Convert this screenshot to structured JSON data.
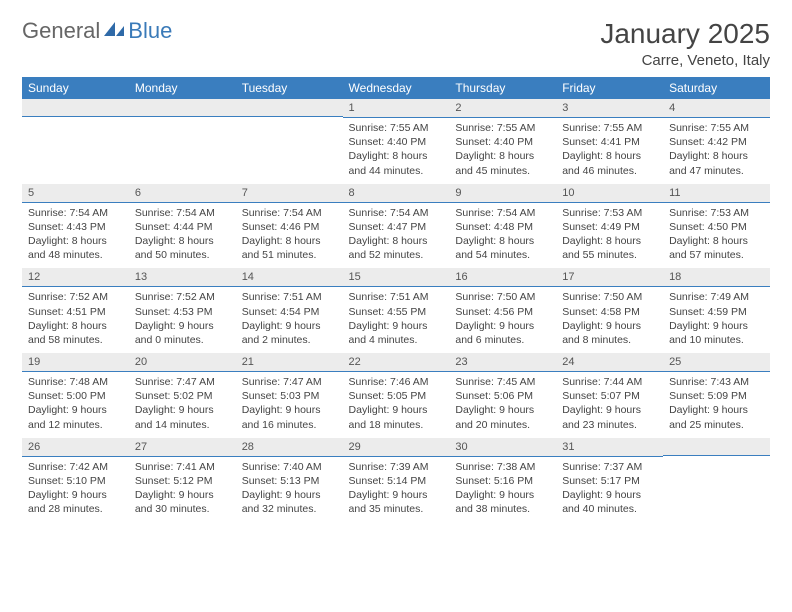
{
  "brand": {
    "word1": "General",
    "word2": "Blue"
  },
  "title": "January 2025",
  "location": "Carre, Veneto, Italy",
  "colors": {
    "header_bg": "#3a7ebf",
    "header_text": "#ffffff",
    "band_bg": "#ececec",
    "band_border": "#3a7ebf",
    "text": "#444444",
    "logo_gray": "#666666",
    "logo_blue": "#3a7ab8",
    "page_bg": "#ffffff"
  },
  "dow": [
    "Sunday",
    "Monday",
    "Tuesday",
    "Wednesday",
    "Thursday",
    "Friday",
    "Saturday"
  ],
  "weeks": [
    [
      {
        "n": "",
        "sr": "",
        "ss": "",
        "dl": ""
      },
      {
        "n": "",
        "sr": "",
        "ss": "",
        "dl": ""
      },
      {
        "n": "",
        "sr": "",
        "ss": "",
        "dl": ""
      },
      {
        "n": "1",
        "sr": "7:55 AM",
        "ss": "4:40 PM",
        "dl": "8 hours and 44 minutes."
      },
      {
        "n": "2",
        "sr": "7:55 AM",
        "ss": "4:40 PM",
        "dl": "8 hours and 45 minutes."
      },
      {
        "n": "3",
        "sr": "7:55 AM",
        "ss": "4:41 PM",
        "dl": "8 hours and 46 minutes."
      },
      {
        "n": "4",
        "sr": "7:55 AM",
        "ss": "4:42 PM",
        "dl": "8 hours and 47 minutes."
      }
    ],
    [
      {
        "n": "5",
        "sr": "7:54 AM",
        "ss": "4:43 PM",
        "dl": "8 hours and 48 minutes."
      },
      {
        "n": "6",
        "sr": "7:54 AM",
        "ss": "4:44 PM",
        "dl": "8 hours and 50 minutes."
      },
      {
        "n": "7",
        "sr": "7:54 AM",
        "ss": "4:46 PM",
        "dl": "8 hours and 51 minutes."
      },
      {
        "n": "8",
        "sr": "7:54 AM",
        "ss": "4:47 PM",
        "dl": "8 hours and 52 minutes."
      },
      {
        "n": "9",
        "sr": "7:54 AM",
        "ss": "4:48 PM",
        "dl": "8 hours and 54 minutes."
      },
      {
        "n": "10",
        "sr": "7:53 AM",
        "ss": "4:49 PM",
        "dl": "8 hours and 55 minutes."
      },
      {
        "n": "11",
        "sr": "7:53 AM",
        "ss": "4:50 PM",
        "dl": "8 hours and 57 minutes."
      }
    ],
    [
      {
        "n": "12",
        "sr": "7:52 AM",
        "ss": "4:51 PM",
        "dl": "8 hours and 58 minutes."
      },
      {
        "n": "13",
        "sr": "7:52 AM",
        "ss": "4:53 PM",
        "dl": "9 hours and 0 minutes."
      },
      {
        "n": "14",
        "sr": "7:51 AM",
        "ss": "4:54 PM",
        "dl": "9 hours and 2 minutes."
      },
      {
        "n": "15",
        "sr": "7:51 AM",
        "ss": "4:55 PM",
        "dl": "9 hours and 4 minutes."
      },
      {
        "n": "16",
        "sr": "7:50 AM",
        "ss": "4:56 PM",
        "dl": "9 hours and 6 minutes."
      },
      {
        "n": "17",
        "sr": "7:50 AM",
        "ss": "4:58 PM",
        "dl": "9 hours and 8 minutes."
      },
      {
        "n": "18",
        "sr": "7:49 AM",
        "ss": "4:59 PM",
        "dl": "9 hours and 10 minutes."
      }
    ],
    [
      {
        "n": "19",
        "sr": "7:48 AM",
        "ss": "5:00 PM",
        "dl": "9 hours and 12 minutes."
      },
      {
        "n": "20",
        "sr": "7:47 AM",
        "ss": "5:02 PM",
        "dl": "9 hours and 14 minutes."
      },
      {
        "n": "21",
        "sr": "7:47 AM",
        "ss": "5:03 PM",
        "dl": "9 hours and 16 minutes."
      },
      {
        "n": "22",
        "sr": "7:46 AM",
        "ss": "5:05 PM",
        "dl": "9 hours and 18 minutes."
      },
      {
        "n": "23",
        "sr": "7:45 AM",
        "ss": "5:06 PM",
        "dl": "9 hours and 20 minutes."
      },
      {
        "n": "24",
        "sr": "7:44 AM",
        "ss": "5:07 PM",
        "dl": "9 hours and 23 minutes."
      },
      {
        "n": "25",
        "sr": "7:43 AM",
        "ss": "5:09 PM",
        "dl": "9 hours and 25 minutes."
      }
    ],
    [
      {
        "n": "26",
        "sr": "7:42 AM",
        "ss": "5:10 PM",
        "dl": "9 hours and 28 minutes."
      },
      {
        "n": "27",
        "sr": "7:41 AM",
        "ss": "5:12 PM",
        "dl": "9 hours and 30 minutes."
      },
      {
        "n": "28",
        "sr": "7:40 AM",
        "ss": "5:13 PM",
        "dl": "9 hours and 32 minutes."
      },
      {
        "n": "29",
        "sr": "7:39 AM",
        "ss": "5:14 PM",
        "dl": "9 hours and 35 minutes."
      },
      {
        "n": "30",
        "sr": "7:38 AM",
        "ss": "5:16 PM",
        "dl": "9 hours and 38 minutes."
      },
      {
        "n": "31",
        "sr": "7:37 AM",
        "ss": "5:17 PM",
        "dl": "9 hours and 40 minutes."
      },
      {
        "n": "",
        "sr": "",
        "ss": "",
        "dl": ""
      }
    ]
  ],
  "labels": {
    "sunrise": "Sunrise:",
    "sunset": "Sunset:",
    "daylight": "Daylight:"
  }
}
